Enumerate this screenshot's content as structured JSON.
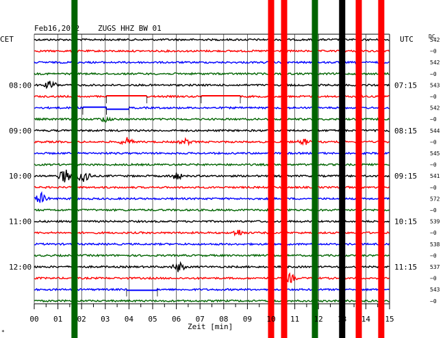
{
  "header": {
    "date": "Feb16,2012",
    "station": "ZUGS HHZ BW 01",
    "left_tz": "CET",
    "right_tz": "UTC",
    "dc_label": "DC"
  },
  "xlabel": "Zeit [min]",
  "footer_mark": "*",
  "colors": {
    "trace_cycle": [
      "#000000",
      "#ff0000",
      "#0000ff",
      "#006400"
    ],
    "grid": "#000000",
    "background": "#ffffff"
  },
  "chart_data": {
    "type": "line",
    "title": "Feb16,2012  ZUGS HHZ BW 01",
    "xlabel": "Zeit [min]",
    "xlim": [
      0,
      15
    ],
    "x_ticks": [
      "00",
      "01",
      "02",
      "03",
      "04",
      "05",
      "06",
      "07",
      "08",
      "09",
      "10",
      "11",
      "12",
      "13",
      "14",
      "15"
    ],
    "left_hour_labels": [
      {
        "row": 4,
        "label": "08:00"
      },
      {
        "row": 8,
        "label": "09:00"
      },
      {
        "row": 12,
        "label": "10:00"
      },
      {
        "row": 16,
        "label": "11:00"
      },
      {
        "row": 20,
        "label": "12:00"
      }
    ],
    "right_hour_labels": [
      {
        "row": 4,
        "label": "07:15"
      },
      {
        "row": 8,
        "label": "08:15"
      },
      {
        "row": 12,
        "label": "09:15"
      },
      {
        "row": 16,
        "label": "10:15"
      },
      {
        "row": 20,
        "label": "11:15"
      }
    ],
    "dc_values": [
      "542",
      "−0",
      "542",
      "−0",
      "543",
      "−0",
      "542",
      "−0",
      "544",
      "−0",
      "545",
      "−0",
      "541",
      "−0",
      "572",
      "−0",
      "539",
      "−0",
      "538",
      "−0",
      "537",
      "−0",
      "543",
      "−0"
    ],
    "trace_rows": 24,
    "vertical_bands": [
      {
        "x_min": 1.7,
        "color": "#006400"
      },
      {
        "x_min": 10.0,
        "color": "#ff0000"
      },
      {
        "x_min": 10.55,
        "color": "#ff0000"
      },
      {
        "x_min": 11.85,
        "color": "#006400"
      },
      {
        "x_min": 13.0,
        "color": "#000000"
      },
      {
        "x_min": 13.7,
        "color": "#ff0000"
      },
      {
        "x_min": 14.65,
        "color": "#ff0000"
      }
    ],
    "events": [
      {
        "row": 4,
        "x_min": 0.7,
        "amplitude": 6
      },
      {
        "row": 7,
        "x_min": 3.0,
        "amplitude": 4
      },
      {
        "row": 9,
        "x_min": 3.9,
        "amplitude": 6
      },
      {
        "row": 9,
        "x_min": 6.4,
        "amplitude": 4
      },
      {
        "row": 9,
        "x_min": 11.4,
        "amplitude": 4
      },
      {
        "row": 12,
        "x_min": 1.3,
        "amplitude": 10
      },
      {
        "row": 12,
        "x_min": 2.1,
        "amplitude": 12
      },
      {
        "row": 12,
        "x_min": 6.0,
        "amplitude": 5
      },
      {
        "row": 14,
        "x_min": 0.3,
        "amplitude": 8
      },
      {
        "row": 17,
        "x_min": 8.6,
        "amplitude": 5
      },
      {
        "row": 20,
        "x_min": 6.1,
        "amplitude": 7
      },
      {
        "row": 21,
        "x_min": 10.8,
        "amplitude": 6
      }
    ],
    "gaps": [
      {
        "row": 5,
        "from": 3.05,
        "to": 4.75,
        "offset": -1
      },
      {
        "row": 5,
        "from": 7.05,
        "to": 8.7,
        "offset": -1
      },
      {
        "row": 6,
        "from": 2.05,
        "to": 3.05,
        "offset": -1
      },
      {
        "row": 6,
        "from": 3.05,
        "to": 4.0,
        "offset": 2
      },
      {
        "row": 22,
        "from": 3.9,
        "to": 5.2,
        "offset": 1
      }
    ]
  }
}
